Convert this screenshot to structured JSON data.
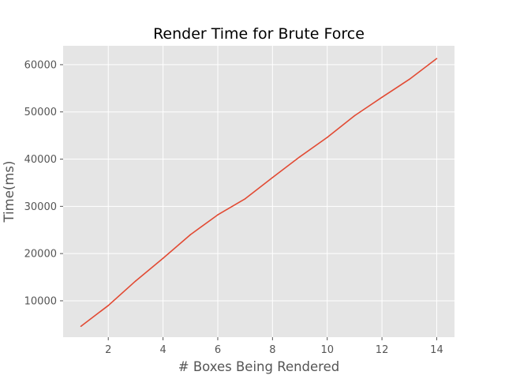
{
  "chart_data": {
    "type": "line",
    "title": "Render Time for Brute Force",
    "xlabel": "# Boxes Being Rendered",
    "ylabel": "Time(ms)",
    "xlim": [
      0.35,
      14.65
    ],
    "ylim": [
      2300,
      64000
    ],
    "xticks": [
      2,
      4,
      6,
      8,
      10,
      12,
      14
    ],
    "yticks": [
      10000,
      20000,
      30000,
      40000,
      50000,
      60000
    ],
    "grid": true,
    "style": "ggplot",
    "colors": {
      "background": "#E5E5E5",
      "grid": "#FFFFFF",
      "line": "#E24A33"
    },
    "series": [
      {
        "x": [
          1,
          2,
          3,
          4,
          5,
          6,
          7,
          8,
          9,
          10,
          11,
          12,
          13,
          14
        ],
        "values": [
          4600,
          9000,
          14200,
          19000,
          24000,
          28200,
          31600,
          36100,
          40500,
          44600,
          49200,
          53100,
          56900,
          61300
        ]
      }
    ]
  }
}
